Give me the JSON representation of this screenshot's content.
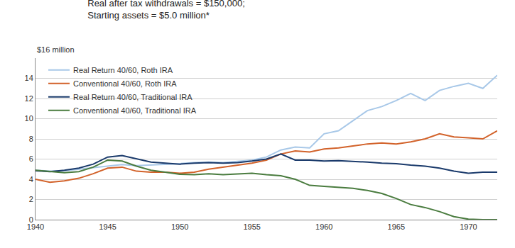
{
  "chart_data": {
    "type": "line",
    "title": "Real after tax withdrawals = $150,000;",
    "subtitle": "Starting assets = $5.0 million*",
    "ylabel": "$16 million",
    "x": [
      1940,
      1941,
      1942,
      1943,
      1944,
      1945,
      1946,
      1947,
      1948,
      1949,
      1950,
      1951,
      1952,
      1953,
      1954,
      1955,
      1956,
      1957,
      1958,
      1959,
      1960,
      1961,
      1962,
      1963,
      1964,
      1965,
      1966,
      1967,
      1968,
      1969,
      1970,
      1971,
      1972
    ],
    "series": [
      {
        "name": "Real Return 40/60, Roth IRA",
        "color": "#a8c8e8",
        "values": [
          4.9,
          4.8,
          4.85,
          5.0,
          5.15,
          5.35,
          5.45,
          5.35,
          5.4,
          5.5,
          5.55,
          5.65,
          5.7,
          5.65,
          5.75,
          5.9,
          6.2,
          6.9,
          7.2,
          7.1,
          8.5,
          8.8,
          9.8,
          10.8,
          11.2,
          11.8,
          12.5,
          11.8,
          12.8,
          13.2,
          13.5,
          13.0,
          14.3
        ]
      },
      {
        "name": "Conventional 40/60, Roth IRA",
        "color": "#d2622a",
        "values": [
          4.0,
          3.7,
          3.85,
          4.1,
          4.55,
          5.1,
          5.2,
          4.8,
          4.7,
          4.7,
          4.6,
          4.7,
          5.0,
          5.2,
          5.4,
          5.6,
          5.9,
          6.5,
          6.8,
          6.7,
          7.0,
          7.1,
          7.3,
          7.5,
          7.6,
          7.5,
          7.7,
          8.0,
          8.5,
          8.2,
          8.1,
          8.0,
          8.8
        ]
      },
      {
        "name": "Real Return 40/60, Traditional IRA",
        "color": "#1a3a6b",
        "values": [
          4.85,
          4.75,
          4.9,
          5.1,
          5.5,
          6.2,
          6.35,
          6.0,
          5.7,
          5.6,
          5.5,
          5.6,
          5.65,
          5.6,
          5.65,
          5.8,
          6.0,
          6.5,
          5.9,
          5.9,
          5.8,
          5.85,
          5.8,
          5.7,
          5.6,
          5.55,
          5.4,
          5.3,
          5.1,
          4.8,
          4.6,
          4.7,
          4.7
        ]
      },
      {
        "name": "Conventional 40/60, Traditional IRA",
        "color": "#4a7c3f",
        "values": [
          4.9,
          4.75,
          4.65,
          4.75,
          5.2,
          5.9,
          5.8,
          5.3,
          4.9,
          4.7,
          4.5,
          4.45,
          4.55,
          4.45,
          4.5,
          4.6,
          4.45,
          4.35,
          4.0,
          3.4,
          3.3,
          3.2,
          3.1,
          2.9,
          2.6,
          2.1,
          1.5,
          1.2,
          0.8,
          0.3,
          0.05,
          0.0,
          0.0
        ]
      }
    ],
    "xlim": [
      1940,
      1972
    ],
    "xticks": [
      1940,
      1945,
      1950,
      1955,
      1960,
      1965,
      1970
    ],
    "ylim": [
      0,
      16
    ],
    "yticks": [
      0,
      2,
      4,
      6,
      8,
      10,
      12,
      14
    ],
    "grid": true,
    "legend": "upper left"
  }
}
